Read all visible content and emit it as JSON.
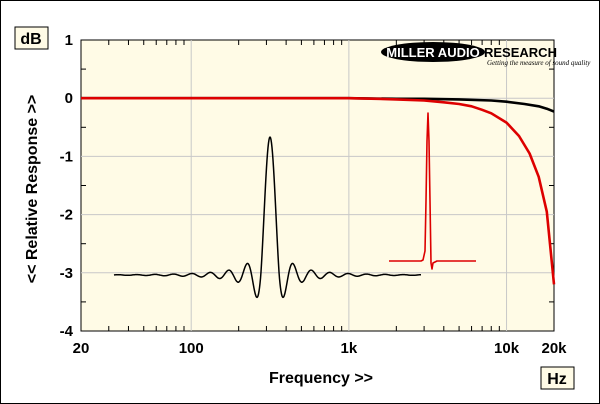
{
  "chart_data": {
    "type": "line",
    "xlabel": "Frequency >>",
    "ylabel": "<< Relative Response >>",
    "x_unit": "Hz",
    "y_unit": "dB",
    "x_scale": "log",
    "xlim": [
      20,
      20000
    ],
    "ylim": [
      -4,
      1
    ],
    "grid": true,
    "x_ticks": [
      {
        "value": 20,
        "label": "20"
      },
      {
        "value": 100,
        "label": "100"
      },
      {
        "value": 1000,
        "label": "1k"
      },
      {
        "value": 10000,
        "label": "10k"
      },
      {
        "value": 20000,
        "label": "20k"
      }
    ],
    "y_ticks": [
      {
        "value": 1,
        "label": "1"
      },
      {
        "value": 0,
        "label": "0"
      },
      {
        "value": -1,
        "label": "-1"
      },
      {
        "value": -2,
        "label": "-2"
      },
      {
        "value": -3,
        "label": "-3"
      },
      {
        "value": -4,
        "label": "-4"
      }
    ],
    "series": [
      {
        "color": "#000000",
        "x": [
          20,
          1000,
          2000,
          3000,
          5000,
          8000,
          10000,
          13000,
          16000,
          18000,
          20000
        ],
        "y": [
          0,
          0,
          -0.01,
          -0.01,
          -0.02,
          -0.04,
          -0.06,
          -0.1,
          -0.14,
          -0.18,
          -0.23
        ]
      },
      {
        "color": "#dd0000",
        "x": [
          20,
          1000,
          1500,
          2000,
          3000,
          4000,
          5000,
          6000,
          7000,
          8000,
          10000,
          12000,
          14000,
          16000,
          18000,
          20000
        ],
        "y": [
          0,
          0,
          -0.01,
          -0.02,
          -0.04,
          -0.07,
          -0.1,
          -0.14,
          -0.2,
          -0.26,
          -0.42,
          -0.65,
          -0.95,
          -1.35,
          -1.95,
          -3.2
        ]
      }
    ]
  },
  "logo": {
    "name_left": "MILLER AUDIO",
    "name_right": "RESEARCH",
    "tagline": "Getting the measure of sound quality"
  },
  "colors": {
    "plot_background": "#fffbe6",
    "grid": "#c8c8c8",
    "black_trace": "#000000",
    "red_trace": "#dd0000"
  }
}
